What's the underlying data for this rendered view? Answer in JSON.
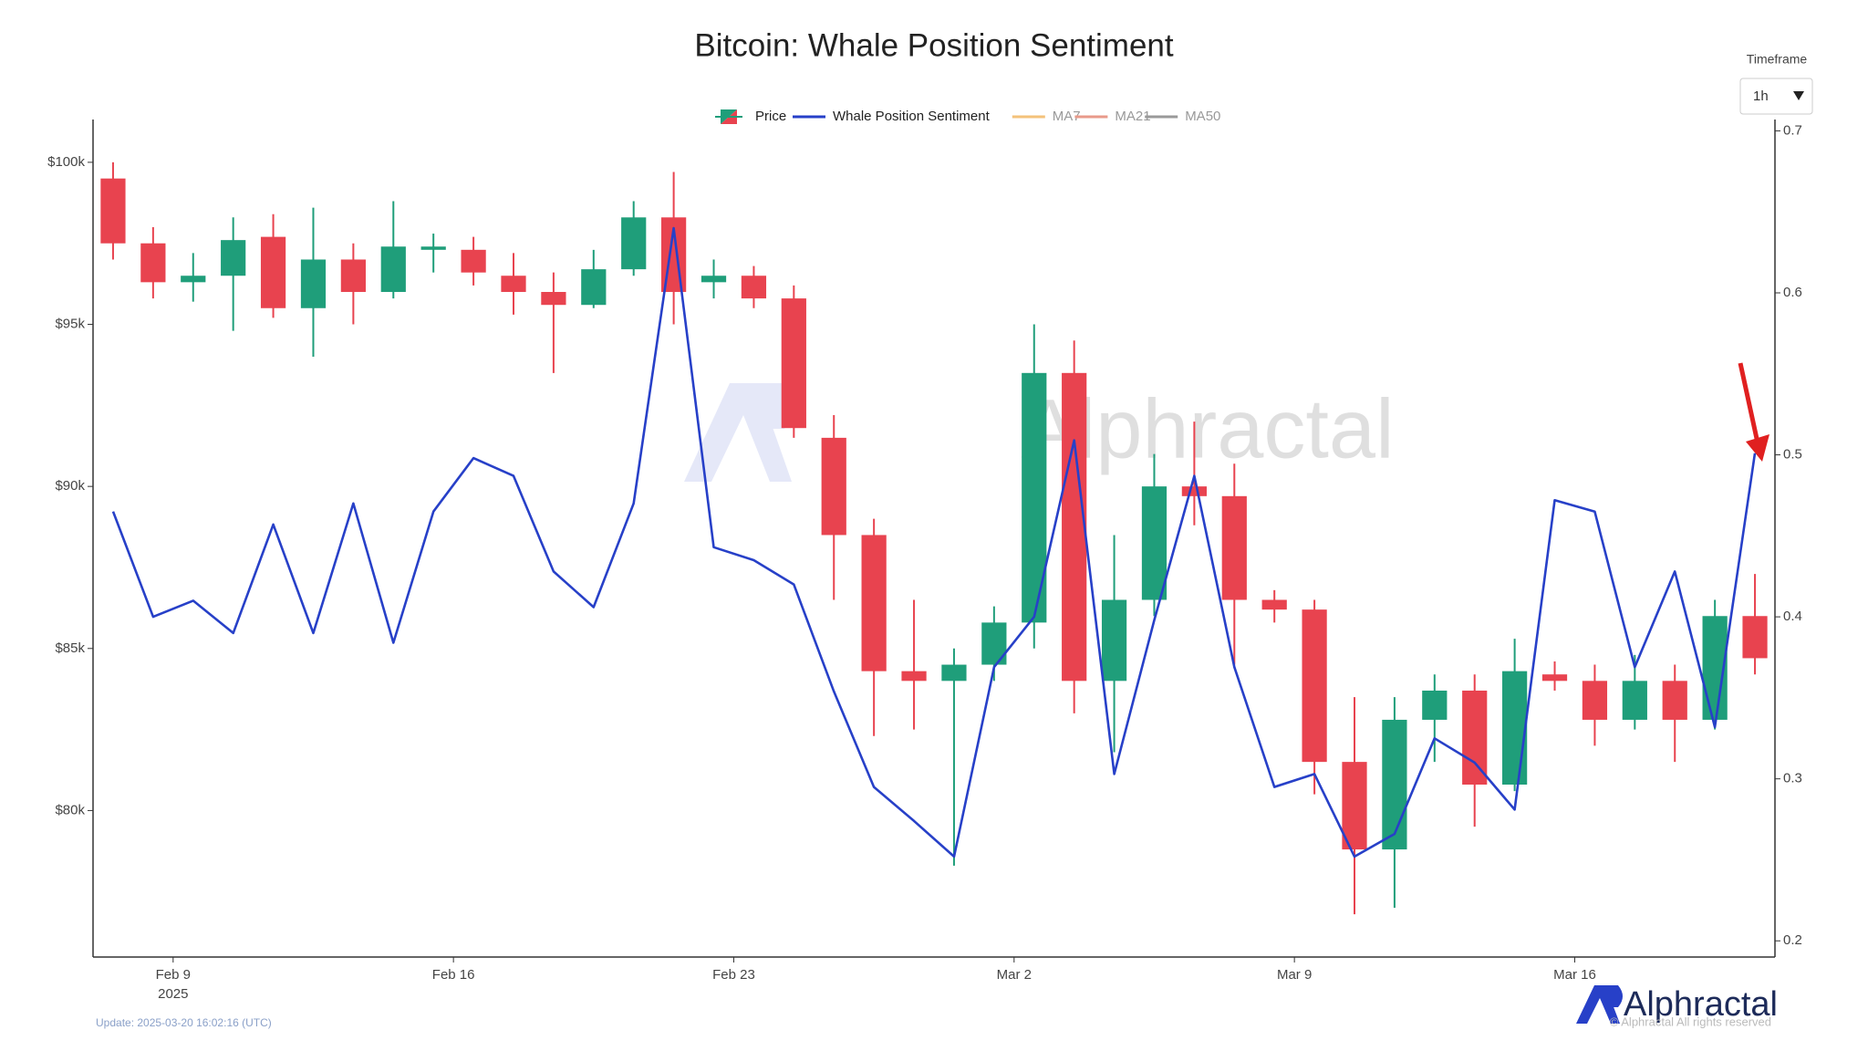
{
  "chart_data": {
    "type": "candlestick",
    "title": "Bitcoin: Whale Position Sentiment",
    "x": [
      "2025-02-07",
      "2025-02-08",
      "2025-02-09",
      "2025-02-10",
      "2025-02-11",
      "2025-02-12",
      "2025-02-13",
      "2025-02-14",
      "2025-02-15",
      "2025-02-16",
      "2025-02-17",
      "2025-02-18",
      "2025-02-19",
      "2025-02-20",
      "2025-02-21",
      "2025-02-22",
      "2025-02-23",
      "2025-02-24",
      "2025-02-25",
      "2025-02-26",
      "2025-02-27",
      "2025-02-28",
      "2025-03-01",
      "2025-03-02",
      "2025-03-03",
      "2025-03-04",
      "2025-03-05",
      "2025-03-06",
      "2025-03-07",
      "2025-03-08",
      "2025-03-09",
      "2025-03-10",
      "2025-03-11",
      "2025-03-12",
      "2025-03-13",
      "2025-03-14",
      "2025-03-15",
      "2025-03-16",
      "2025-03-17",
      "2025-03-18",
      "2025-03-19",
      "2025-03-20"
    ],
    "series": [
      {
        "name": "Price",
        "up_color": "#1f9e7a",
        "down_color": "#e8434f",
        "open": [
          99500,
          97500,
          96300,
          96500,
          97700,
          95500,
          97000,
          96000,
          97300,
          97300,
          96500,
          96000,
          95600,
          96700,
          98300,
          96300,
          96500,
          95800,
          91500,
          88500,
          84300,
          84000,
          84500,
          85800,
          93500,
          84000,
          86500,
          90000,
          89700,
          86500,
          86200,
          81500,
          78800,
          82800,
          83700,
          80800,
          84200,
          84000,
          82800,
          84000,
          82800,
          86000
        ],
        "high": [
          100000,
          98000,
          97200,
          98300,
          98400,
          98600,
          97500,
          98800,
          97800,
          97700,
          97200,
          96600,
          97300,
          98800,
          99700,
          97000,
          96800,
          96200,
          92200,
          89000,
          86500,
          85000,
          86300,
          95000,
          94500,
          88500,
          91000,
          92000,
          90700,
          86800,
          86500,
          83500,
          83500,
          84200,
          84200,
          85300,
          84600,
          84500,
          84800,
          84500,
          86500,
          87300
        ],
        "low": [
          97000,
          95800,
          95700,
          94800,
          95200,
          94000,
          95000,
          95800,
          96600,
          96200,
          95300,
          93500,
          95500,
          96500,
          95000,
          95800,
          95500,
          91500,
          86500,
          82300,
          82500,
          78300,
          84000,
          85000,
          83000,
          81800,
          86000,
          88800,
          84500,
          85800,
          80500,
          76800,
          77000,
          81500,
          79500,
          80600,
          83700,
          82000,
          82500,
          81500,
          82500,
          84200
        ],
        "close": [
          97500,
          96300,
          96500,
          97600,
          95500,
          97000,
          96000,
          97400,
          97400,
          96600,
          96000,
          95600,
          96700,
          98300,
          96000,
          96500,
          95800,
          91800,
          88500,
          84300,
          84000,
          84500,
          85800,
          93500,
          84000,
          86500,
          90000,
          89700,
          86500,
          86200,
          81500,
          78800,
          82800,
          83700,
          80800,
          84300,
          84000,
          82800,
          84000,
          82800,
          86000,
          84700
        ]
      },
      {
        "name": "Whale Position Sentiment",
        "color": "#2740c8",
        "axis": "y2",
        "values": [
          0.465,
          0.4,
          0.41,
          0.39,
          0.457,
          0.39,
          0.47,
          0.384,
          0.465,
          0.498,
          0.487,
          0.428,
          0.406,
          0.47,
          0.64,
          0.443,
          0.435,
          0.42,
          0.354,
          0.295,
          0.274,
          0.252,
          0.369,
          0.4,
          0.509,
          0.303,
          0.398,
          0.487,
          0.369,
          0.295,
          0.303,
          0.252,
          0.266,
          0.325,
          0.31,
          0.281,
          0.472,
          0.465,
          0.369,
          0.428,
          0.332,
          0.501
        ]
      }
    ],
    "indicators": [
      {
        "name": "MA7",
        "color": "#f4c27a"
      },
      {
        "name": "MA21",
        "color": "#e89a8a"
      },
      {
        "name": "MA50",
        "color": "#9a9a9a"
      }
    ],
    "xlim": [
      "2025-02-07",
      "2025-03-21"
    ],
    "xticks": [
      {
        "value": "2025-02-09",
        "label": "Feb 9"
      },
      {
        "value": "2025-02-16",
        "label": "Feb 16"
      },
      {
        "value": "2025-02-23",
        "label": "Feb 23"
      },
      {
        "value": "2025-03-02",
        "label": "Mar 2"
      },
      {
        "value": "2025-03-09",
        "label": "Mar 9"
      },
      {
        "value": "2025-03-16",
        "label": "Mar 16"
      }
    ],
    "x_year_label": "2025",
    "ylim": [
      75480,
      101320
    ],
    "yticks": [
      {
        "value": 80000,
        "label": "$80k"
      },
      {
        "value": 85000,
        "label": "$85k"
      },
      {
        "value": 90000,
        "label": "$90k"
      },
      {
        "value": 95000,
        "label": "$95k"
      },
      {
        "value": 100000,
        "label": "$100k"
      }
    ],
    "y2lim": [
      0.19,
      0.707
    ],
    "y2ticks": [
      0.2,
      0.3,
      0.4,
      0.5,
      0.6,
      0.7
    ],
    "grid": false,
    "legend_position": "top",
    "timeframe_label": "Timeframe",
    "timeframe_value": "1h",
    "watermark": "Alphractal",
    "brand": "Alphractal",
    "copyright": "© Alphractal All rights reserved",
    "update_note": "Update: 2025-03-20 16:02:16 (UTC)"
  }
}
